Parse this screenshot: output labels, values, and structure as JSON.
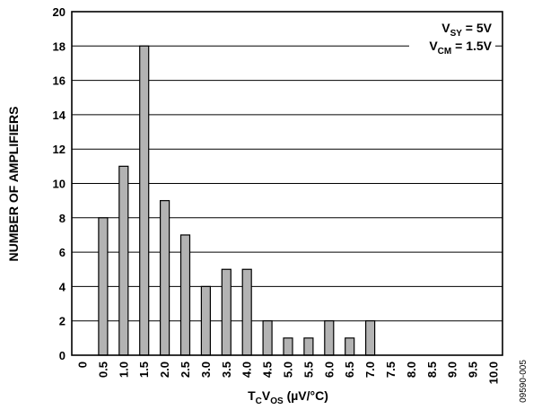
{
  "chart_data": {
    "type": "bar",
    "xlabel": {
      "base": "T",
      "base_sub": "C",
      "mid": "V",
      "mid_sub": "OS",
      "unit": " (µV/°C)"
    },
    "ylabel": "NUMBER OF AMPLIFIERS",
    "categories": [
      "0",
      "0.5",
      "1.0",
      "1.5",
      "2.0",
      "2.5",
      "3.0",
      "3.5",
      "4.0",
      "4.5",
      "5.0",
      "5.5",
      "6.0",
      "6.5",
      "7.0",
      "7.5",
      "8.0",
      "8.5",
      "9.0",
      "9.5",
      "10.0"
    ],
    "values": [
      0,
      8,
      11,
      18,
      9,
      7,
      4,
      5,
      5,
      2,
      1,
      1,
      2,
      1,
      2,
      0,
      0,
      0,
      0,
      0,
      0
    ],
    "ylim": [
      0,
      20
    ],
    "yticks": [
      "0",
      "2",
      "4",
      "6",
      "8",
      "10",
      "12",
      "14",
      "16",
      "18",
      "20"
    ],
    "grid": true,
    "bar_color": "#b3b3b3",
    "annotation": {
      "line1": {
        "main": "V",
        "sub": "SY",
        "rest": " = 5V"
      },
      "line2": {
        "main": "V",
        "sub": "CM",
        "rest": " = 1.5V"
      }
    },
    "figure_id": "09590-005"
  }
}
